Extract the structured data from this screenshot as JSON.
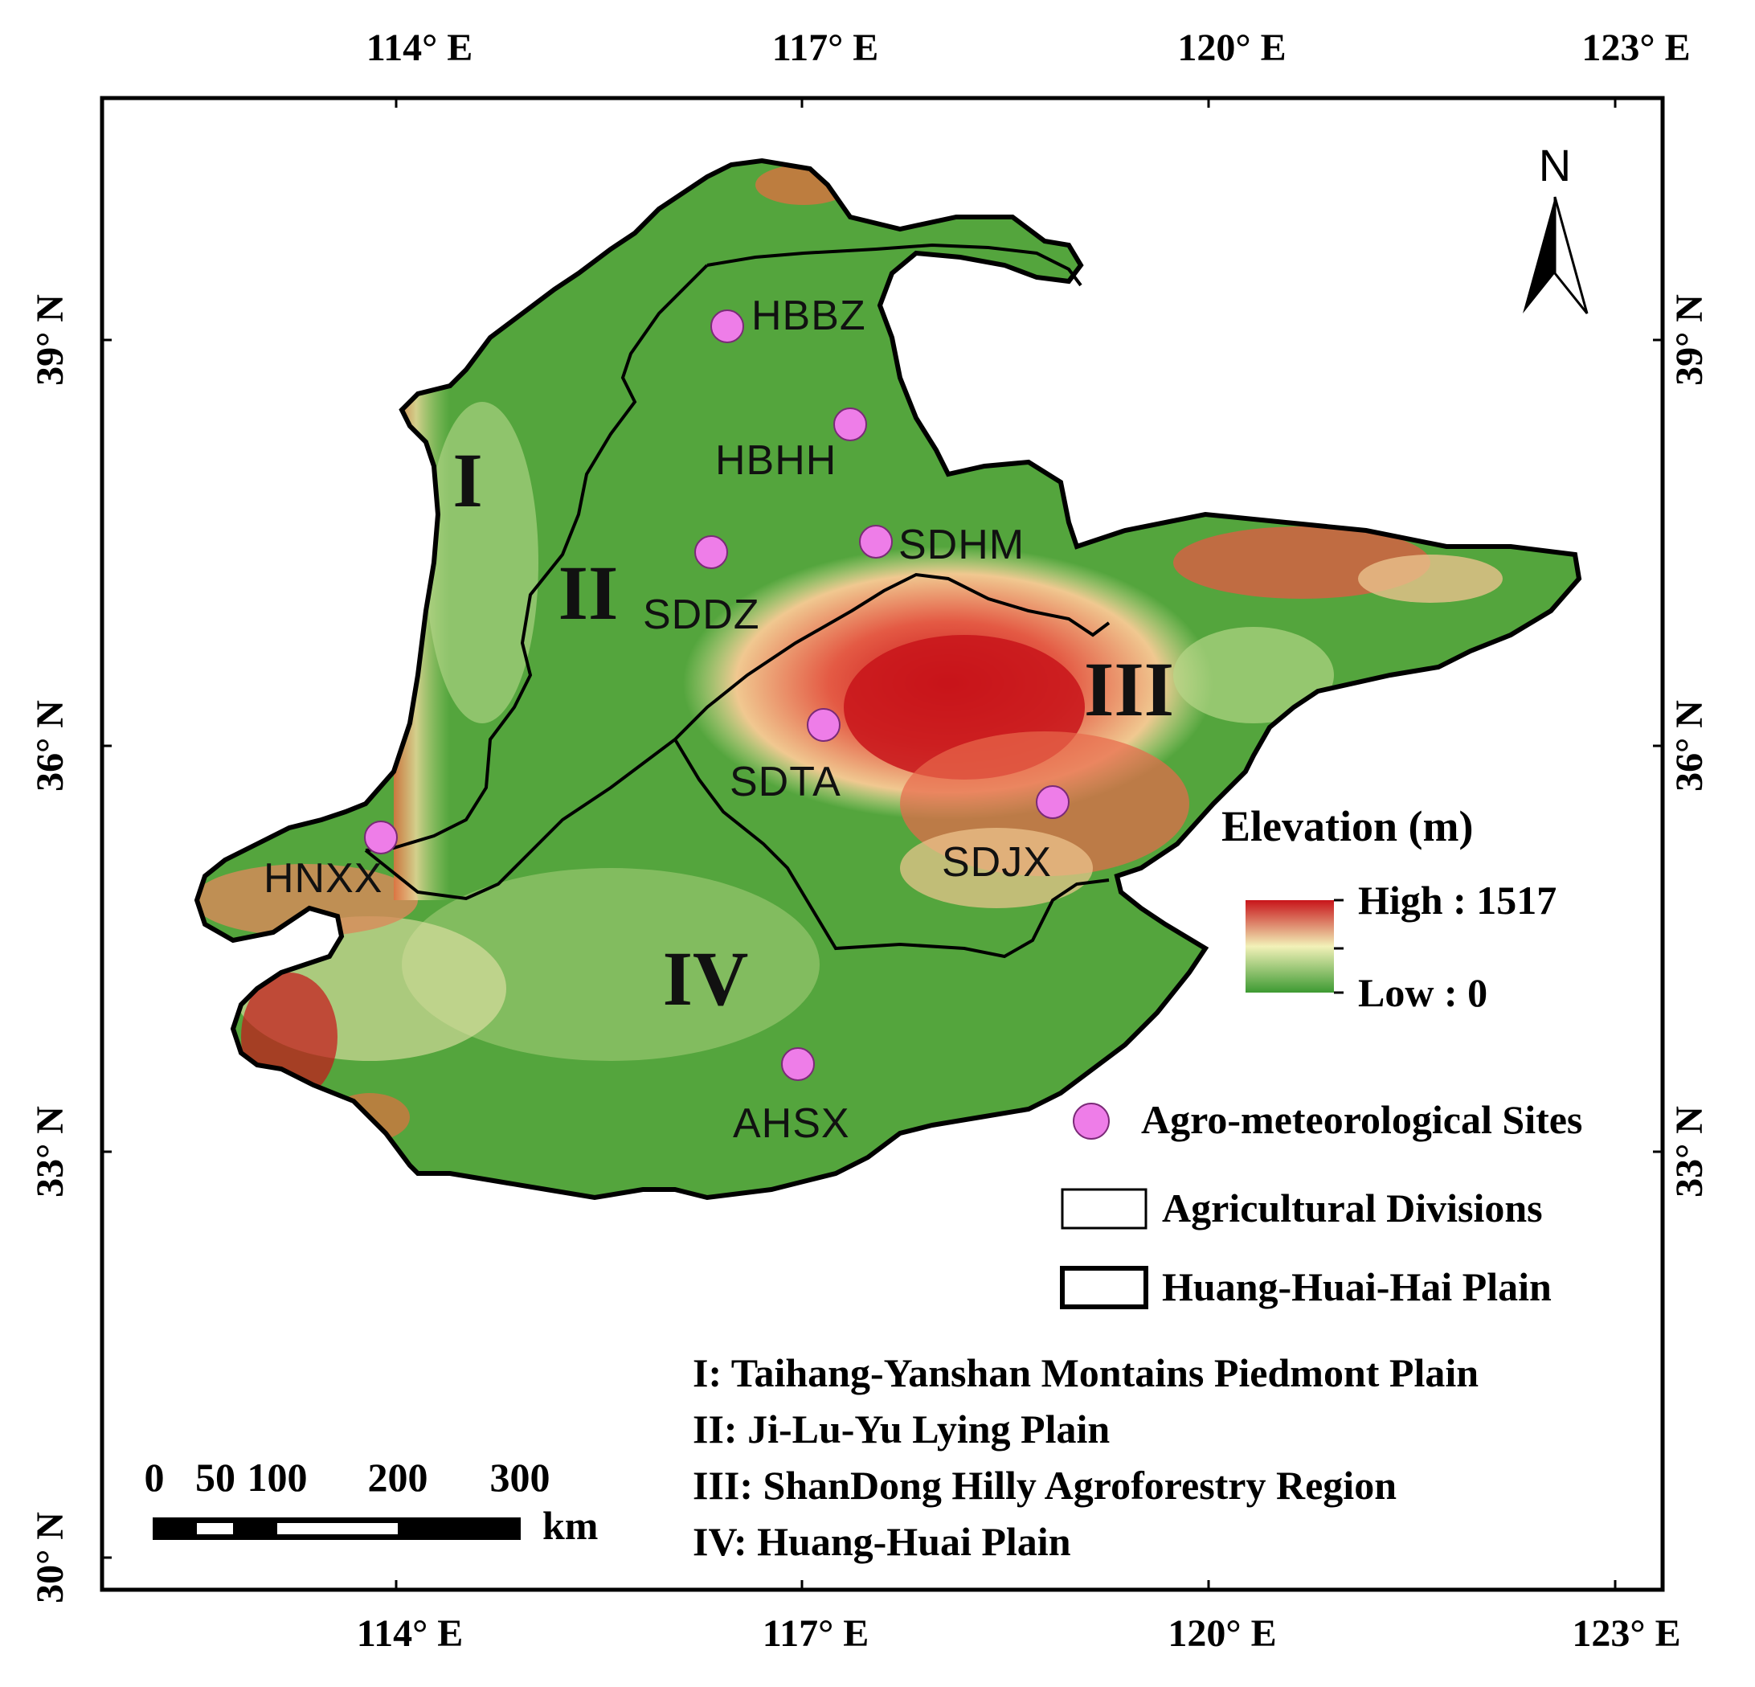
{
  "colors": {
    "elevation_low": "#3d9a32",
    "elevation_mid": "#f2f1b8",
    "elevation_high": "#c8141a",
    "site_fill": "#ee7de8",
    "outline": "#000000"
  },
  "graticule": {
    "longitude_labels_top": [
      "114° E",
      "117° E",
      "120° E",
      "123° E"
    ],
    "longitude_labels_bottom": [
      "114° E",
      "117° E",
      "120° E",
      "123° E"
    ],
    "latitude_labels_left": [
      "39° N",
      "36° N",
      "33° N",
      "30° N"
    ],
    "latitude_labels_right": [
      "39° N",
      "36° N",
      "33° N"
    ]
  },
  "regions": {
    "r1": "I",
    "r2": "II",
    "r3": "III",
    "r4": "IV"
  },
  "sites": {
    "hbbz": "HBBZ",
    "hbhh": "HBHH",
    "sddz": "SDDZ",
    "sdhm": "SDHM",
    "sdta": "SDTA",
    "sdjx": "SDJX",
    "hnxx": "HNXX",
    "ahsx": "AHSX"
  },
  "north_arrow": {
    "label": "N"
  },
  "legend": {
    "title": "Elevation (m)",
    "high": "High : 1517",
    "low": "Low : 0",
    "sites": "Agro-meteorological Sites",
    "divisions": "Agricultural Divisions",
    "plain": "Huang-Huai-Hai Plain",
    "region_descriptions": [
      "I: Taihang-Yanshan Montains Piedmont Plain",
      "II: Ji-Lu-Yu Lying Plain",
      "III: ShanDong Hilly Agroforestry Region",
      "IV: Huang-Huai Plain"
    ]
  },
  "scale_bar": {
    "ticks": [
      "0",
      "50",
      "100",
      "200",
      "300"
    ],
    "unit": "km"
  }
}
